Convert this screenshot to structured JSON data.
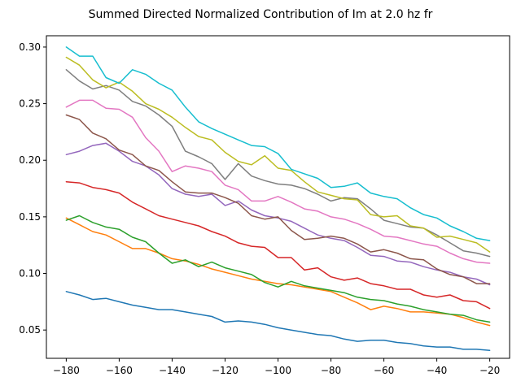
{
  "chart_data": {
    "type": "line",
    "title": "Summed Directed Normalized Contribution of Im at 2.0 hz fr",
    "xlabel": "",
    "ylabel": "",
    "xlim": [
      -187.5,
      -12.5
    ],
    "ylim": [
      0.025,
      0.31
    ],
    "grid": false,
    "x_ticks": [
      -180,
      -160,
      -140,
      -120,
      -100,
      -80,
      -60,
      -40,
      -20
    ],
    "x_tick_labels": [
      "−180",
      "−160",
      "−140",
      "−120",
      "−100",
      "−80",
      "−60",
      "−40",
      "−20"
    ],
    "y_ticks": [
      0.05,
      0.1,
      0.15,
      0.2,
      0.25,
      0.3
    ],
    "y_tick_labels": [
      "0.05",
      "0.10",
      "0.15",
      "0.20",
      "0.25",
      "0.30"
    ],
    "x": [
      -180,
      -175,
      -170,
      -165,
      -160,
      -155,
      -150,
      -145,
      -140,
      -135,
      -130,
      -125,
      -120,
      -115,
      -110,
      -105,
      -100,
      -95,
      -90,
      -85,
      -80,
      -75,
      -70,
      -65,
      -60,
      -55,
      -50,
      -45,
      -40,
      -35,
      -30,
      -25,
      -20
    ],
    "series": [
      {
        "color": "#1f77b4",
        "values": [
          0.084,
          0.081,
          0.077,
          0.078,
          0.075,
          0.072,
          0.07,
          0.068,
          0.068,
          0.066,
          0.064,
          0.062,
          0.057,
          0.058,
          0.057,
          0.055,
          0.052,
          0.05,
          0.048,
          0.046,
          0.045,
          0.042,
          0.04,
          0.041,
          0.041,
          0.039,
          0.038,
          0.036,
          0.035,
          0.035,
          0.033,
          0.033,
          0.032
        ]
      },
      {
        "color": "#ff7f0e",
        "values": [
          0.149,
          0.143,
          0.137,
          0.134,
          0.128,
          0.122,
          0.122,
          0.118,
          0.113,
          0.111,
          0.108,
          0.104,
          0.101,
          0.098,
          0.095,
          0.093,
          0.091,
          0.09,
          0.088,
          0.086,
          0.084,
          0.079,
          0.074,
          0.068,
          0.071,
          0.069,
          0.066,
          0.066,
          0.065,
          0.064,
          0.061,
          0.057,
          0.054
        ]
      },
      {
        "color": "#2ca02c",
        "values": [
          0.147,
          0.151,
          0.145,
          0.141,
          0.139,
          0.132,
          0.128,
          0.118,
          0.109,
          0.112,
          0.106,
          0.11,
          0.105,
          0.102,
          0.099,
          0.092,
          0.088,
          0.093,
          0.089,
          0.087,
          0.085,
          0.083,
          0.079,
          0.077,
          0.076,
          0.073,
          0.071,
          0.068,
          0.066,
          0.064,
          0.063,
          0.059,
          0.057
        ]
      },
      {
        "color": "#d62728",
        "values": [
          0.181,
          0.18,
          0.176,
          0.174,
          0.171,
          0.163,
          0.157,
          0.151,
          0.148,
          0.145,
          0.142,
          0.137,
          0.133,
          0.127,
          0.124,
          0.123,
          0.114,
          0.114,
          0.103,
          0.105,
          0.097,
          0.094,
          0.096,
          0.091,
          0.089,
          0.086,
          0.086,
          0.081,
          0.079,
          0.081,
          0.076,
          0.075,
          0.069
        ]
      },
      {
        "color": "#9467bd",
        "values": [
          0.205,
          0.208,
          0.213,
          0.215,
          0.208,
          0.199,
          0.195,
          0.187,
          0.175,
          0.17,
          0.168,
          0.17,
          0.16,
          0.164,
          0.156,
          0.151,
          0.149,
          0.146,
          0.14,
          0.134,
          0.131,
          0.129,
          0.123,
          0.116,
          0.115,
          0.111,
          0.11,
          0.106,
          0.103,
          0.101,
          0.097,
          0.095,
          0.09
        ]
      },
      {
        "color": "#8c564b",
        "values": [
          0.24,
          0.236,
          0.224,
          0.219,
          0.209,
          0.205,
          0.195,
          0.191,
          0.181,
          0.172,
          0.171,
          0.171,
          0.167,
          0.162,
          0.151,
          0.148,
          0.15,
          0.138,
          0.13,
          0.131,
          0.133,
          0.131,
          0.126,
          0.119,
          0.121,
          0.118,
          0.113,
          0.112,
          0.104,
          0.099,
          0.097,
          0.091,
          0.091
        ]
      },
      {
        "color": "#e377c2",
        "values": [
          0.247,
          0.253,
          0.253,
          0.246,
          0.245,
          0.238,
          0.22,
          0.208,
          0.19,
          0.195,
          0.193,
          0.19,
          0.178,
          0.174,
          0.164,
          0.164,
          0.168,
          0.163,
          0.157,
          0.155,
          0.15,
          0.148,
          0.144,
          0.139,
          0.133,
          0.132,
          0.129,
          0.126,
          0.124,
          0.118,
          0.113,
          0.11,
          0.109
        ]
      },
      {
        "color": "#7f7f7f",
        "values": [
          0.28,
          0.27,
          0.263,
          0.266,
          0.262,
          0.252,
          0.248,
          0.24,
          0.23,
          0.208,
          0.203,
          0.197,
          0.183,
          0.197,
          0.186,
          0.182,
          0.179,
          0.178,
          0.175,
          0.17,
          0.164,
          0.167,
          0.166,
          0.157,
          0.147,
          0.144,
          0.141,
          0.14,
          0.134,
          0.127,
          0.12,
          0.118,
          0.115
        ]
      },
      {
        "color": "#bcbd22",
        "values": [
          0.291,
          0.284,
          0.271,
          0.264,
          0.269,
          0.261,
          0.25,
          0.245,
          0.238,
          0.229,
          0.221,
          0.218,
          0.207,
          0.199,
          0.196,
          0.204,
          0.193,
          0.191,
          0.181,
          0.172,
          0.169,
          0.166,
          0.165,
          0.152,
          0.15,
          0.151,
          0.142,
          0.14,
          0.132,
          0.133,
          0.13,
          0.127,
          0.119
        ]
      },
      {
        "color": "#17becf",
        "values": [
          0.3,
          0.292,
          0.292,
          0.273,
          0.268,
          0.28,
          0.276,
          0.268,
          0.262,
          0.247,
          0.234,
          0.228,
          0.223,
          0.218,
          0.213,
          0.212,
          0.206,
          0.192,
          0.188,
          0.184,
          0.176,
          0.177,
          0.18,
          0.171,
          0.168,
          0.166,
          0.158,
          0.152,
          0.149,
          0.142,
          0.137,
          0.131,
          0.129
        ]
      }
    ]
  }
}
